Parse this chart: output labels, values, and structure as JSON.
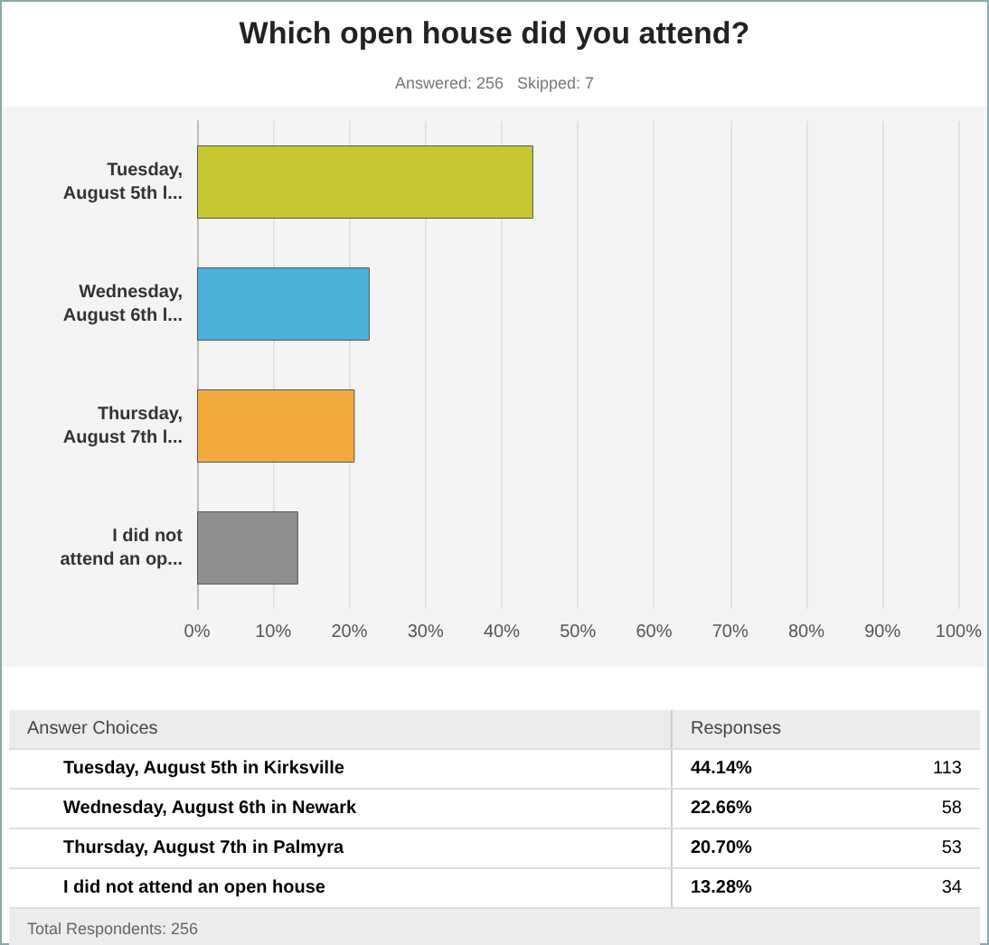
{
  "chart_data": {
    "type": "bar",
    "orientation": "horizontal",
    "title": "Which open house did you attend?",
    "subtitle": "Answered: 256   Skipped: 7",
    "categories": [
      "Tuesday,\nAugust 5th l...",
      "Wednesday,\nAugust 6th l...",
      "Thursday,\nAugust 7th l...",
      "I did not\nattend an op..."
    ],
    "values": [
      44.14,
      22.66,
      20.7,
      13.28
    ],
    "colors": [
      "#c8c832",
      "#4cb2da",
      "#f4aa3c",
      "#8e8e8e"
    ],
    "xlim": [
      0,
      100
    ],
    "xticks": [
      {
        "value": 0,
        "label": "0%"
      },
      {
        "value": 10,
        "label": "10%"
      },
      {
        "value": 20,
        "label": "20%"
      },
      {
        "value": 30,
        "label": "30%"
      },
      {
        "value": 40,
        "label": "40%"
      },
      {
        "value": 50,
        "label": "50%"
      },
      {
        "value": 60,
        "label": "60%"
      },
      {
        "value": 70,
        "label": "70%"
      },
      {
        "value": 80,
        "label": "80%"
      },
      {
        "value": 90,
        "label": "90%"
      },
      {
        "value": 100,
        "label": "100%"
      }
    ],
    "grid": "x",
    "annotations": [
      "Answer Choices",
      "Responses",
      "Tuesday, August 5th in Kirksville",
      "44.14%",
      "113",
      "Wednesday, August 6th in Newark",
      "22.66%",
      "58",
      "Thursday, August 7th in Palmyra",
      "20.70%",
      "53",
      "I did not attend an open house",
      "13.28%",
      "34",
      "Total Respondents: 256"
    ]
  }
}
